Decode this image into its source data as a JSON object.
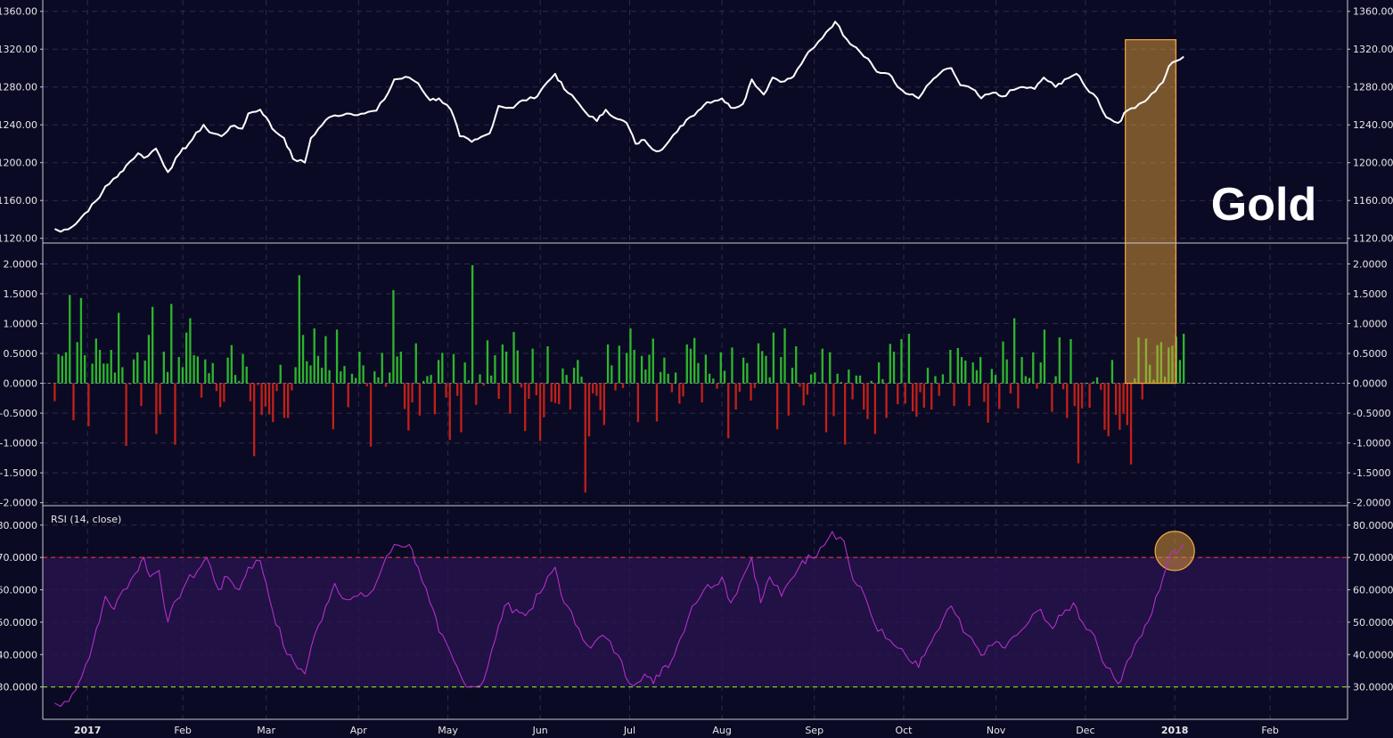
{
  "chart_data": [
    {
      "type": "line",
      "panel": "price",
      "label": "Gold",
      "ylim": [
        1115,
        1372
      ],
      "y_ticks": [
        "1120.00",
        "1160.00",
        "1200.00",
        "1240.00",
        "1280.00",
        "1320.00",
        "1360.00"
      ],
      "keypoints": [
        [
          "2016-12-20",
          1130
        ],
        [
          "2016-12-22",
          1127
        ],
        [
          "2016-12-27",
          1135
        ],
        [
          "2016-12-30",
          1146
        ],
        [
          "2017-01-04",
          1163
        ],
        [
          "2017-01-06",
          1175
        ],
        [
          "2017-01-10",
          1185
        ],
        [
          "2017-01-13",
          1197
        ],
        [
          "2017-01-17",
          1210
        ],
        [
          "2017-01-19",
          1205
        ],
        [
          "2017-01-23",
          1215
        ],
        [
          "2017-01-27",
          1190
        ],
        [
          "2017-01-31",
          1210
        ],
        [
          "2017-02-03",
          1220
        ],
        [
          "2017-02-08",
          1240
        ],
        [
          "2017-02-10",
          1232
        ],
        [
          "2017-02-14",
          1228
        ],
        [
          "2017-02-17",
          1238
        ],
        [
          "2017-02-21",
          1236
        ],
        [
          "2017-02-23",
          1252
        ],
        [
          "2017-02-27",
          1256
        ],
        [
          "2017-03-01",
          1248
        ],
        [
          "2017-03-03",
          1236
        ],
        [
          "2017-03-07",
          1226
        ],
        [
          "2017-03-10",
          1204
        ],
        [
          "2017-03-14",
          1200
        ],
        [
          "2017-03-16",
          1226
        ],
        [
          "2017-03-21",
          1245
        ],
        [
          "2017-03-24",
          1250
        ],
        [
          "2017-03-28",
          1252
        ],
        [
          "2017-04-03",
          1252
        ],
        [
          "2017-04-07",
          1255
        ],
        [
          "2017-04-11",
          1274
        ],
        [
          "2017-04-13",
          1288
        ],
        [
          "2017-04-18",
          1290
        ],
        [
          "2017-04-21",
          1284
        ],
        [
          "2017-04-25",
          1266
        ],
        [
          "2017-04-28",
          1268
        ],
        [
          "2017-05-02",
          1256
        ],
        [
          "2017-05-05",
          1228
        ],
        [
          "2017-05-09",
          1222
        ],
        [
          "2017-05-11",
          1225
        ],
        [
          "2017-05-15",
          1231
        ],
        [
          "2017-05-18",
          1260
        ],
        [
          "2017-05-23",
          1258
        ],
        [
          "2017-05-26",
          1266
        ],
        [
          "2017-05-30",
          1268
        ],
        [
          "2017-06-02",
          1280
        ],
        [
          "2017-06-06",
          1294
        ],
        [
          "2017-06-09",
          1278
        ],
        [
          "2017-06-13",
          1266
        ],
        [
          "2017-06-16",
          1254
        ],
        [
          "2017-06-20",
          1244
        ],
        [
          "2017-06-23",
          1256
        ],
        [
          "2017-06-27",
          1246
        ],
        [
          "2017-06-30",
          1242
        ],
        [
          "2017-07-03",
          1220
        ],
        [
          "2017-07-06",
          1224
        ],
        [
          "2017-07-10",
          1212
        ],
        [
          "2017-07-13",
          1218
        ],
        [
          "2017-07-17",
          1233
        ],
        [
          "2017-07-20",
          1245
        ],
        [
          "2017-07-24",
          1255
        ],
        [
          "2017-07-27",
          1264
        ],
        [
          "2017-08-01",
          1268
        ],
        [
          "2017-08-04",
          1258
        ],
        [
          "2017-08-08",
          1262
        ],
        [
          "2017-08-11",
          1288
        ],
        [
          "2017-08-15",
          1272
        ],
        [
          "2017-08-18",
          1290
        ],
        [
          "2017-08-22",
          1286
        ],
        [
          "2017-08-25",
          1291
        ],
        [
          "2017-08-29",
          1312
        ],
        [
          "2017-09-01",
          1322
        ],
        [
          "2017-09-05",
          1338
        ],
        [
          "2017-09-08",
          1349
        ],
        [
          "2017-09-12",
          1330
        ],
        [
          "2017-09-15",
          1322
        ],
        [
          "2017-09-19",
          1310
        ],
        [
          "2017-09-22",
          1296
        ],
        [
          "2017-09-26",
          1294
        ],
        [
          "2017-09-29",
          1280
        ],
        [
          "2017-10-03",
          1272
        ],
        [
          "2017-10-06",
          1268
        ],
        [
          "2017-10-10",
          1285
        ],
        [
          "2017-10-13",
          1294
        ],
        [
          "2017-10-17",
          1300
        ],
        [
          "2017-10-20",
          1282
        ],
        [
          "2017-10-24",
          1278
        ],
        [
          "2017-10-27",
          1268
        ],
        [
          "2017-10-31",
          1274
        ],
        [
          "2017-11-03",
          1270
        ],
        [
          "2017-11-07",
          1277
        ],
        [
          "2017-11-10",
          1280
        ],
        [
          "2017-11-14",
          1278
        ],
        [
          "2017-11-17",
          1290
        ],
        [
          "2017-11-21",
          1280
        ],
        [
          "2017-11-24",
          1288
        ],
        [
          "2017-11-28",
          1294
        ],
        [
          "2017-12-01",
          1280
        ],
        [
          "2017-12-05",
          1268
        ],
        [
          "2017-12-08",
          1248
        ],
        [
          "2017-12-12",
          1242
        ],
        [
          "2017-12-15",
          1255
        ],
        [
          "2017-12-19",
          1262
        ],
        [
          "2017-12-22",
          1268
        ],
        [
          "2017-12-27",
          1285
        ],
        [
          "2017-12-29",
          1302
        ],
        [
          "2018-01-03",
          1312
        ]
      ]
    },
    {
      "type": "bar",
      "panel": "change",
      "ylim": [
        -2.05,
        2.35
      ],
      "y_ticks": [
        "-2.0000",
        "-1.5000",
        "-1.0000",
        "-0.5000",
        "0.0000",
        "0.5000",
        "1.0000",
        "1.5000",
        "2.0000"
      ],
      "positive_color": "#2db52d",
      "negative_color": "#c0201a",
      "x_range": [
        "2016-12-20",
        "2018-01-03"
      ],
      "values": [
        -0.3,
        0.49,
        0.46,
        0.52,
        1.48,
        -0.62,
        0.69,
        1.43,
        0.47,
        -0.72,
        0.33,
        0.75,
        0.56,
        0.33,
        0.33,
        0.56,
        0.18,
        1.18,
        0.27,
        -1.05,
        -0.02,
        0.4,
        0.52,
        -0.38,
        0.38,
        0.81,
        1.28,
        -0.85,
        -0.52,
        0.53,
        0.19,
        1.33,
        -1.03,
        0.44,
        0.27,
        0.85,
        1.09,
        0.47,
        0.45,
        -0.24,
        0.4,
        0.17,
        0.34,
        -0.13,
        -0.4,
        -0.31,
        0.43,
        0.64,
        0.14,
        0.04,
        0.49,
        0.28,
        -0.3,
        -1.22,
        -0.03,
        -0.53,
        -0.39,
        -0.52,
        -0.65,
        -0.13,
        0.31,
        -0.58,
        -0.58,
        -0.12,
        0.27,
        1.81,
        0.81,
        0.37,
        0.3,
        0.92,
        0.46,
        0.26,
        0.79,
        0.22,
        -0.77,
        0.9,
        0.2,
        0.29,
        -0.4,
        0.16,
        0.09,
        0.53,
        0.3,
        -0.05,
        -1.06,
        0.2,
        0.1,
        0.51,
        -0.06,
        0.18,
        1.56,
        0.45,
        0.53,
        -0.43,
        -0.79,
        -0.32,
        0.67,
        -0.54,
        0.04,
        0.12,
        0.14,
        -0.52,
        0.39,
        0.51,
        -0.24,
        -0.95,
        0.49,
        -0.21,
        -0.82,
        0.35,
        0.05,
        1.98,
        -0.36,
        0.15,
        -0.04,
        0.72,
        0.13,
        0.47,
        -0.26,
        0.65,
        0.53,
        -0.51,
        0.86,
        0.55,
        -0.07,
        -0.8,
        -0.26,
        0.58,
        -0.2,
        -0.96,
        -0.57,
        0.62,
        -0.31,
        -0.33,
        -0.35,
        0.25,
        0.14,
        -0.44,
        0.26,
        0.39,
        0.11,
        -1.83,
        -0.89,
        -0.17,
        -0.21,
        -0.45,
        -0.7,
        0.65,
        0.3,
        -0.12,
        0.63,
        -0.08,
        0.51,
        0.92,
        0.56,
        -0.65,
        0.46,
        0.23,
        0.48,
        0.75,
        -0.64,
        0.19,
        0.43,
        0.16,
        -0.15,
        0.18,
        -0.34,
        -0.22,
        0.65,
        0.58,
        0.76,
        0.34,
        -0.32,
        0.48,
        0.16,
        0.08,
        -0.09,
        0.52,
        0.21,
        -0.92,
        0.6,
        -0.44,
        -0.14,
        0.43,
        0.34,
        -0.29,
        -0.08,
        0.67,
        0.54,
        0.46,
        0.1,
        0.85,
        -0.77,
        0.44,
        0.92,
        -0.54,
        0.26,
        0.62,
        -0.06,
        -0.37,
        -0.19,
        0.15,
        0.18,
        0.02,
        0.58,
        -0.82,
        0.52,
        -0.55,
        0.16,
        0.02,
        -1.03,
        0.23,
        -0.27,
        0.13,
        0.13,
        -0.44,
        -0.6,
        0.04,
        -0.85,
        0.35,
        0.07,
        -0.58,
        0.66,
        0.53,
        -0.35,
        0.74,
        -0.34,
        0.83,
        -0.47,
        -0.56,
        -0.15,
        -0.41,
        0.26,
        -0.44,
        0.12,
        -0.21,
        0.15,
        0.01,
        0.56,
        -0.38,
        0.59,
        0.44,
        0.38,
        -0.38,
        0.35,
        0.22,
        0.44,
        -0.31,
        -0.66,
        0.24,
        0.14,
        -0.43,
        0.7,
        0.4,
        -0.17,
        1.09,
        -0.42,
        0.44,
        0.12,
        0.09,
        0.52,
        -0.09,
        0.35,
        0.9,
        0.0,
        -0.48,
        0.12,
        0.77,
        -0.1,
        -0.58,
        0.74,
        -0.38,
        -1.34,
        -0.42,
        0.0,
        -0.41,
        0.03,
        0.1,
        -0.11,
        -0.78,
        -0.89,
        0.39,
        -0.53,
        -0.78,
        -0.51,
        -0.7,
        -1.36,
        0.08,
        0.77,
        -0.27,
        0.75,
        0.31,
        0.06,
        0.64,
        0.69,
        0.11,
        0.6,
        0.63,
        0.78,
        0.39,
        0.83
      ],
      "highlight_range": [
        "2017-12-15",
        "2017-12-29"
      ]
    },
    {
      "type": "line",
      "panel": "rsi",
      "label": "RSI (14, close)",
      "ylim": [
        20,
        86
      ],
      "y_ticks": [
        "30.0000",
        "40.0000",
        "50.0000",
        "60.0000",
        "70.0000",
        "80.0000"
      ],
      "overbought": 70,
      "oversold": 30,
      "keypoints": [
        [
          "2016-12-20",
          25
        ],
        [
          "2016-12-22",
          24
        ],
        [
          "2016-12-26",
          28
        ],
        [
          "2016-12-29",
          33
        ],
        [
          "2017-01-02",
          44
        ],
        [
          "2017-01-04",
          50
        ],
        [
          "2017-01-06",
          58
        ],
        [
          "2017-01-09",
          54
        ],
        [
          "2017-01-12",
          60
        ],
        [
          "2017-01-16",
          65
        ],
        [
          "2017-01-19",
          70
        ],
        [
          "2017-01-21",
          64
        ],
        [
          "2017-01-24",
          66
        ],
        [
          "2017-01-27",
          50
        ],
        [
          "2017-01-30",
          57
        ],
        [
          "2017-02-02",
          62
        ],
        [
          "2017-02-06",
          66
        ],
        [
          "2017-02-09",
          70
        ],
        [
          "2017-02-13",
          60
        ],
        [
          "2017-02-16",
          64
        ],
        [
          "2017-02-20",
          60
        ],
        [
          "2017-02-23",
          67
        ],
        [
          "2017-02-27",
          69
        ],
        [
          "2017-03-01",
          62
        ],
        [
          "2017-03-03",
          54
        ],
        [
          "2017-03-08",
          40
        ],
        [
          "2017-03-14",
          34
        ],
        [
          "2017-03-16",
          42
        ],
        [
          "2017-03-21",
          55
        ],
        [
          "2017-03-24",
          62
        ],
        [
          "2017-03-28",
          57
        ],
        [
          "2017-04-03",
          58
        ],
        [
          "2017-04-06",
          60
        ],
        [
          "2017-04-09",
          67
        ],
        [
          "2017-04-13",
          74
        ],
        [
          "2017-04-18",
          74
        ],
        [
          "2017-04-21",
          67
        ],
        [
          "2017-04-25",
          56
        ],
        [
          "2017-04-28",
          47
        ],
        [
          "2017-05-03",
          38
        ],
        [
          "2017-05-06",
          32
        ],
        [
          "2017-05-10",
          30
        ],
        [
          "2017-05-13",
          32
        ],
        [
          "2017-05-17",
          45
        ],
        [
          "2017-05-20",
          55
        ],
        [
          "2017-05-24",
          54
        ],
        [
          "2017-05-27",
          52
        ],
        [
          "2017-06-01",
          59
        ],
        [
          "2017-06-06",
          67
        ],
        [
          "2017-06-09",
          56
        ],
        [
          "2017-06-14",
          48
        ],
        [
          "2017-06-18",
          42
        ],
        [
          "2017-06-22",
          46
        ],
        [
          "2017-06-27",
          40
        ],
        [
          "2017-07-01",
          31
        ],
        [
          "2017-07-06",
          34
        ],
        [
          "2017-07-09",
          31
        ],
        [
          "2017-07-12",
          36
        ],
        [
          "2017-07-15",
          38
        ],
        [
          "2017-07-18",
          45
        ],
        [
          "2017-07-22",
          55
        ],
        [
          "2017-07-26",
          60
        ],
        [
          "2017-08-01",
          64
        ],
        [
          "2017-08-04",
          56
        ],
        [
          "2017-08-07",
          62
        ],
        [
          "2017-08-11",
          70
        ],
        [
          "2017-08-14",
          56
        ],
        [
          "2017-08-17",
          64
        ],
        [
          "2017-08-21",
          58
        ],
        [
          "2017-08-24",
          63
        ],
        [
          "2017-08-28",
          69
        ],
        [
          "2017-08-31",
          70
        ],
        [
          "2017-09-03",
          73
        ],
        [
          "2017-09-07",
          78
        ],
        [
          "2017-09-11",
          75
        ],
        [
          "2017-09-14",
          63
        ],
        [
          "2017-09-18",
          58
        ],
        [
          "2017-09-21",
          50
        ],
        [
          "2017-09-25",
          45
        ],
        [
          "2017-09-29",
          42
        ],
        [
          "2017-10-03",
          38
        ],
        [
          "2017-10-06",
          36
        ],
        [
          "2017-10-09",
          42
        ],
        [
          "2017-10-13",
          48
        ],
        [
          "2017-10-17",
          55
        ],
        [
          "2017-10-21",
          47
        ],
        [
          "2017-10-25",
          43
        ],
        [
          "2017-10-28",
          40
        ],
        [
          "2017-11-01",
          44
        ],
        [
          "2017-11-04",
          42
        ],
        [
          "2017-11-08",
          46
        ],
        [
          "2017-11-12",
          50
        ],
        [
          "2017-11-16",
          54
        ],
        [
          "2017-11-20",
          48
        ],
        [
          "2017-11-23",
          52
        ],
        [
          "2017-11-27",
          56
        ],
        [
          "2017-11-30",
          50
        ],
        [
          "2017-12-04",
          46
        ],
        [
          "2017-12-08",
          36
        ],
        [
          "2017-12-12",
          31
        ],
        [
          "2017-12-15",
          38
        ],
        [
          "2017-12-19",
          45
        ],
        [
          "2017-12-22",
          50
        ],
        [
          "2017-12-26",
          60
        ],
        [
          "2017-12-29",
          70
        ],
        [
          "2018-01-03",
          74
        ]
      ],
      "highlight_point": [
        "2017-12-31",
        72
      ]
    }
  ],
  "x_axis": {
    "range": [
      "2016-12-16",
      "2018-02-27"
    ],
    "labels": [
      {
        "date": "2016-12-31",
        "text": "2017",
        "bold": true
      },
      {
        "date": "2017-02-01",
        "text": "Feb",
        "bold": false
      },
      {
        "date": "2017-03-01",
        "text": "Mar",
        "bold": false
      },
      {
        "date": "2017-04-01",
        "text": "Apr",
        "bold": false
      },
      {
        "date": "2017-05-01",
        "text": "May",
        "bold": false
      },
      {
        "date": "2017-06-01",
        "text": "Jun",
        "bold": false
      },
      {
        "date": "2017-07-01",
        "text": "Jul",
        "bold": false
      },
      {
        "date": "2017-08-01",
        "text": "Aug",
        "bold": false
      },
      {
        "date": "2017-09-01",
        "text": "Sep",
        "bold": false
      },
      {
        "date": "2017-10-01",
        "text": "Oct",
        "bold": false
      },
      {
        "date": "2017-11-01",
        "text": "Nov",
        "bold": false
      },
      {
        "date": "2017-12-01",
        "text": "Dec",
        "bold": false
      },
      {
        "date": "2017-12-31",
        "text": "2018",
        "bold": true
      },
      {
        "date": "2018-02-01",
        "text": "Feb",
        "bold": false
      }
    ]
  },
  "colors": {
    "background": "#0b0a24",
    "price_line": "#ffffff",
    "rsi_line": "#b42fc8",
    "rsi_band": "#2a1450",
    "overbought_line": "#e0383a",
    "oversold_line": "#7ccc22",
    "highlight": "#f2a73b",
    "grid": "#2c2b4a",
    "separator": "#c9c9d2"
  }
}
